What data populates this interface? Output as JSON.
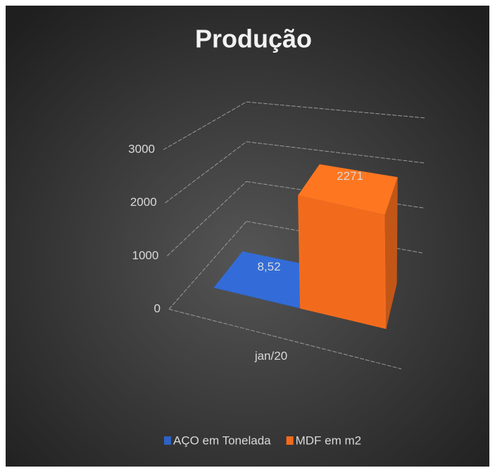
{
  "chart_data": {
    "type": "bar3d",
    "title": "Produção",
    "categories": [
      "jan/20"
    ],
    "series": [
      {
        "name": "AÇO em Tonelada",
        "color": "#2e62c4",
        "values": [
          8.52
        ],
        "value_labels": [
          "8,52"
        ]
      },
      {
        "name": "MDF em m2",
        "color": "#f26b1d",
        "values": [
          2271
        ]
      }
    ],
    "ylim": [
      0,
      3000
    ],
    "yticks": [
      0,
      1000,
      2000,
      3000
    ],
    "grid": true,
    "legend": "bottom"
  }
}
